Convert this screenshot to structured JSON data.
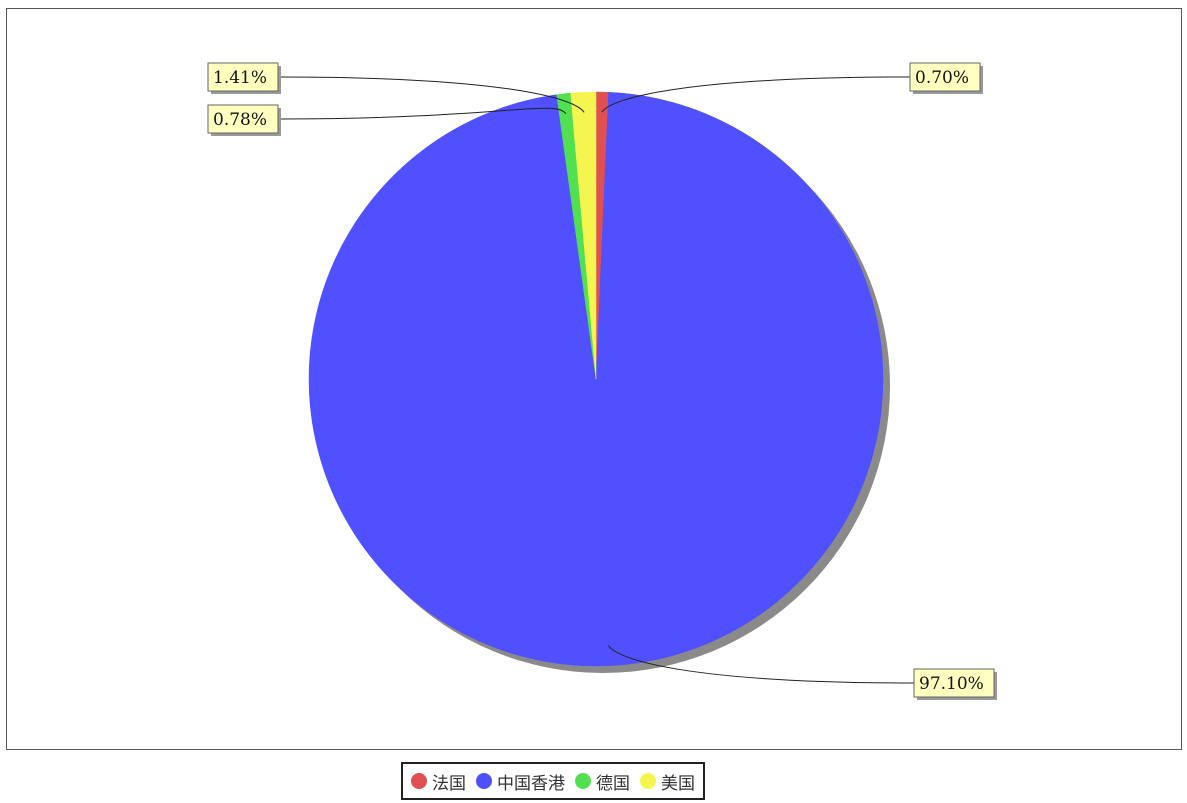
{
  "chart_data": {
    "type": "pie",
    "slices": [
      {
        "name": "法国",
        "value": 0.7,
        "label": "0.70%",
        "color": "#e05050"
      },
      {
        "name": "中国香港",
        "value": 97.1,
        "label": "97.10%",
        "color": "#5050ff"
      },
      {
        "name": "德国",
        "value": 0.78,
        "label": "0.78%",
        "color": "#50e050"
      },
      {
        "name": "美国",
        "value": 1.41,
        "label": "1.41%",
        "color": "#f5f550"
      }
    ],
    "start_angle": "top",
    "direction": "clockwise",
    "legend_position": "bottom"
  }
}
